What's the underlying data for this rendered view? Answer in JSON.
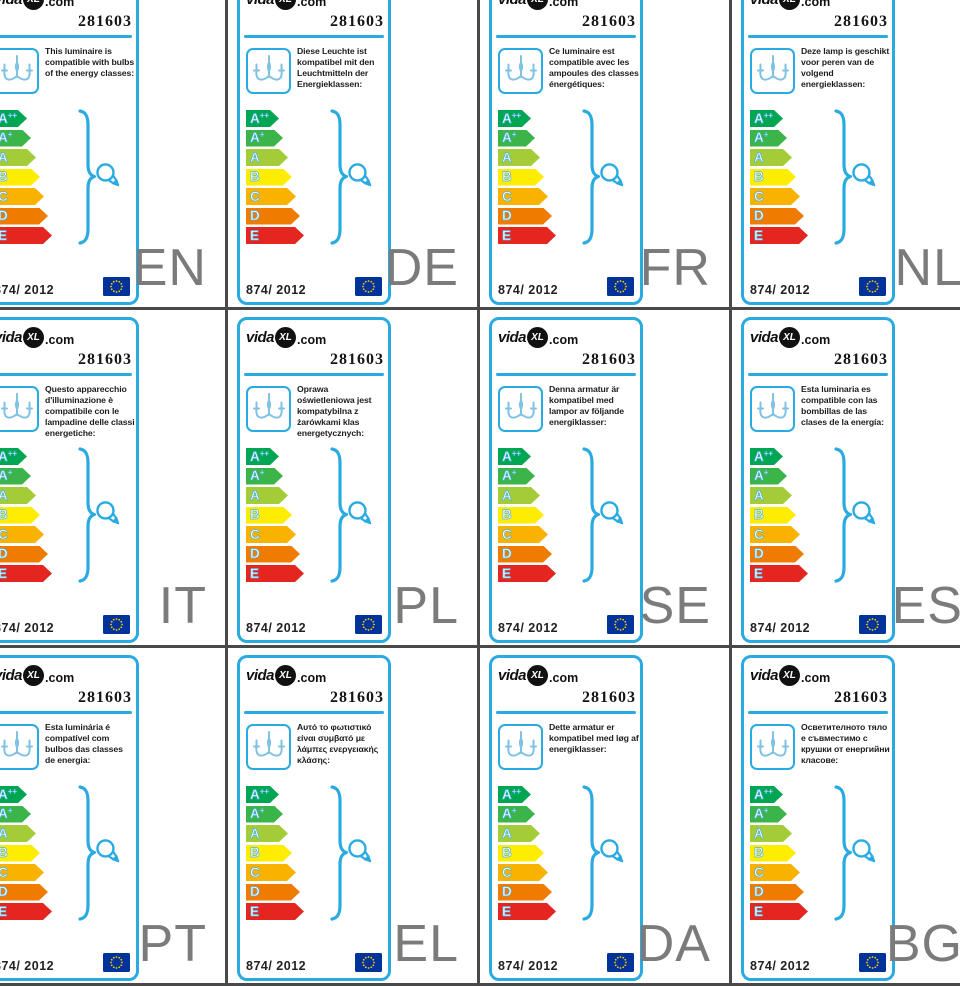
{
  "product_number": "281603",
  "regulation": "874/ 2012",
  "logo": {
    "prefix": "vida",
    "badge": "XL",
    "suffix": ".com"
  },
  "energy_classes": [
    {
      "label": "A",
      "sup": "++",
      "color": "#00a651"
    },
    {
      "label": "A",
      "sup": "+",
      "color": "#3bb44a"
    },
    {
      "label": "A",
      "sup": "",
      "color": "#a3cc38"
    },
    {
      "label": "B",
      "sup": "",
      "color": "#ffed00"
    },
    {
      "label": "C",
      "sup": "",
      "color": "#f9b200"
    },
    {
      "label": "D",
      "sup": "",
      "color": "#ef7c00"
    },
    {
      "label": "E",
      "sup": "",
      "color": "#e52620"
    }
  ],
  "labels": [
    {
      "lang": "EN",
      "text": "This luminaire is compatible with bulbs of the energy classes:"
    },
    {
      "lang": "DE",
      "text": "Diese Leuchte ist kompatibel mit den Leuchtmitteln der Energieklassen:"
    },
    {
      "lang": "FR",
      "text": "Ce luminaire est compatible avec les ampoules des classes énergétiques:"
    },
    {
      "lang": "NL",
      "text": "Deze lamp is geschikt voor peren van de volgend energieklassen:"
    },
    {
      "lang": "IT",
      "text": "Questo apparecchio d'illuminazione è compatibile con le lampadine delle classi energetiche:"
    },
    {
      "lang": "PL",
      "text": "Oprawa oświetleniowa jest kompatybilna z żarówkami klas energetycznych:"
    },
    {
      "lang": "SE",
      "text": "Denna armatur är kompatibel med lampor av följande energiklasser:"
    },
    {
      "lang": "ES",
      "text": "Esta luminaria es compatible con las bombillas de las clases de la energía:"
    },
    {
      "lang": "PT",
      "text": "Esta luminária é compatível com bulbos das classes de energia:"
    },
    {
      "lang": "EL",
      "text": "Αυτό το φωτιστικό είναι συμβατό με λάμπες ενεργειακής κλάσης:"
    },
    {
      "lang": "DA",
      "text": "Dette armatur er kompatibel med løg af energiklasser:"
    },
    {
      "lang": "BG",
      "text": "Осветителното тяло е съвместимо с крушки от енергийни класове:"
    }
  ],
  "colors": {
    "card_border": "#29abe2",
    "grid_line": "#494949",
    "language_code_text": "#7b7b7b",
    "eu_flag_blue": "#003399",
    "eu_flag_stars": "#ffcc00",
    "icon_blue": "#7fc2e4"
  }
}
